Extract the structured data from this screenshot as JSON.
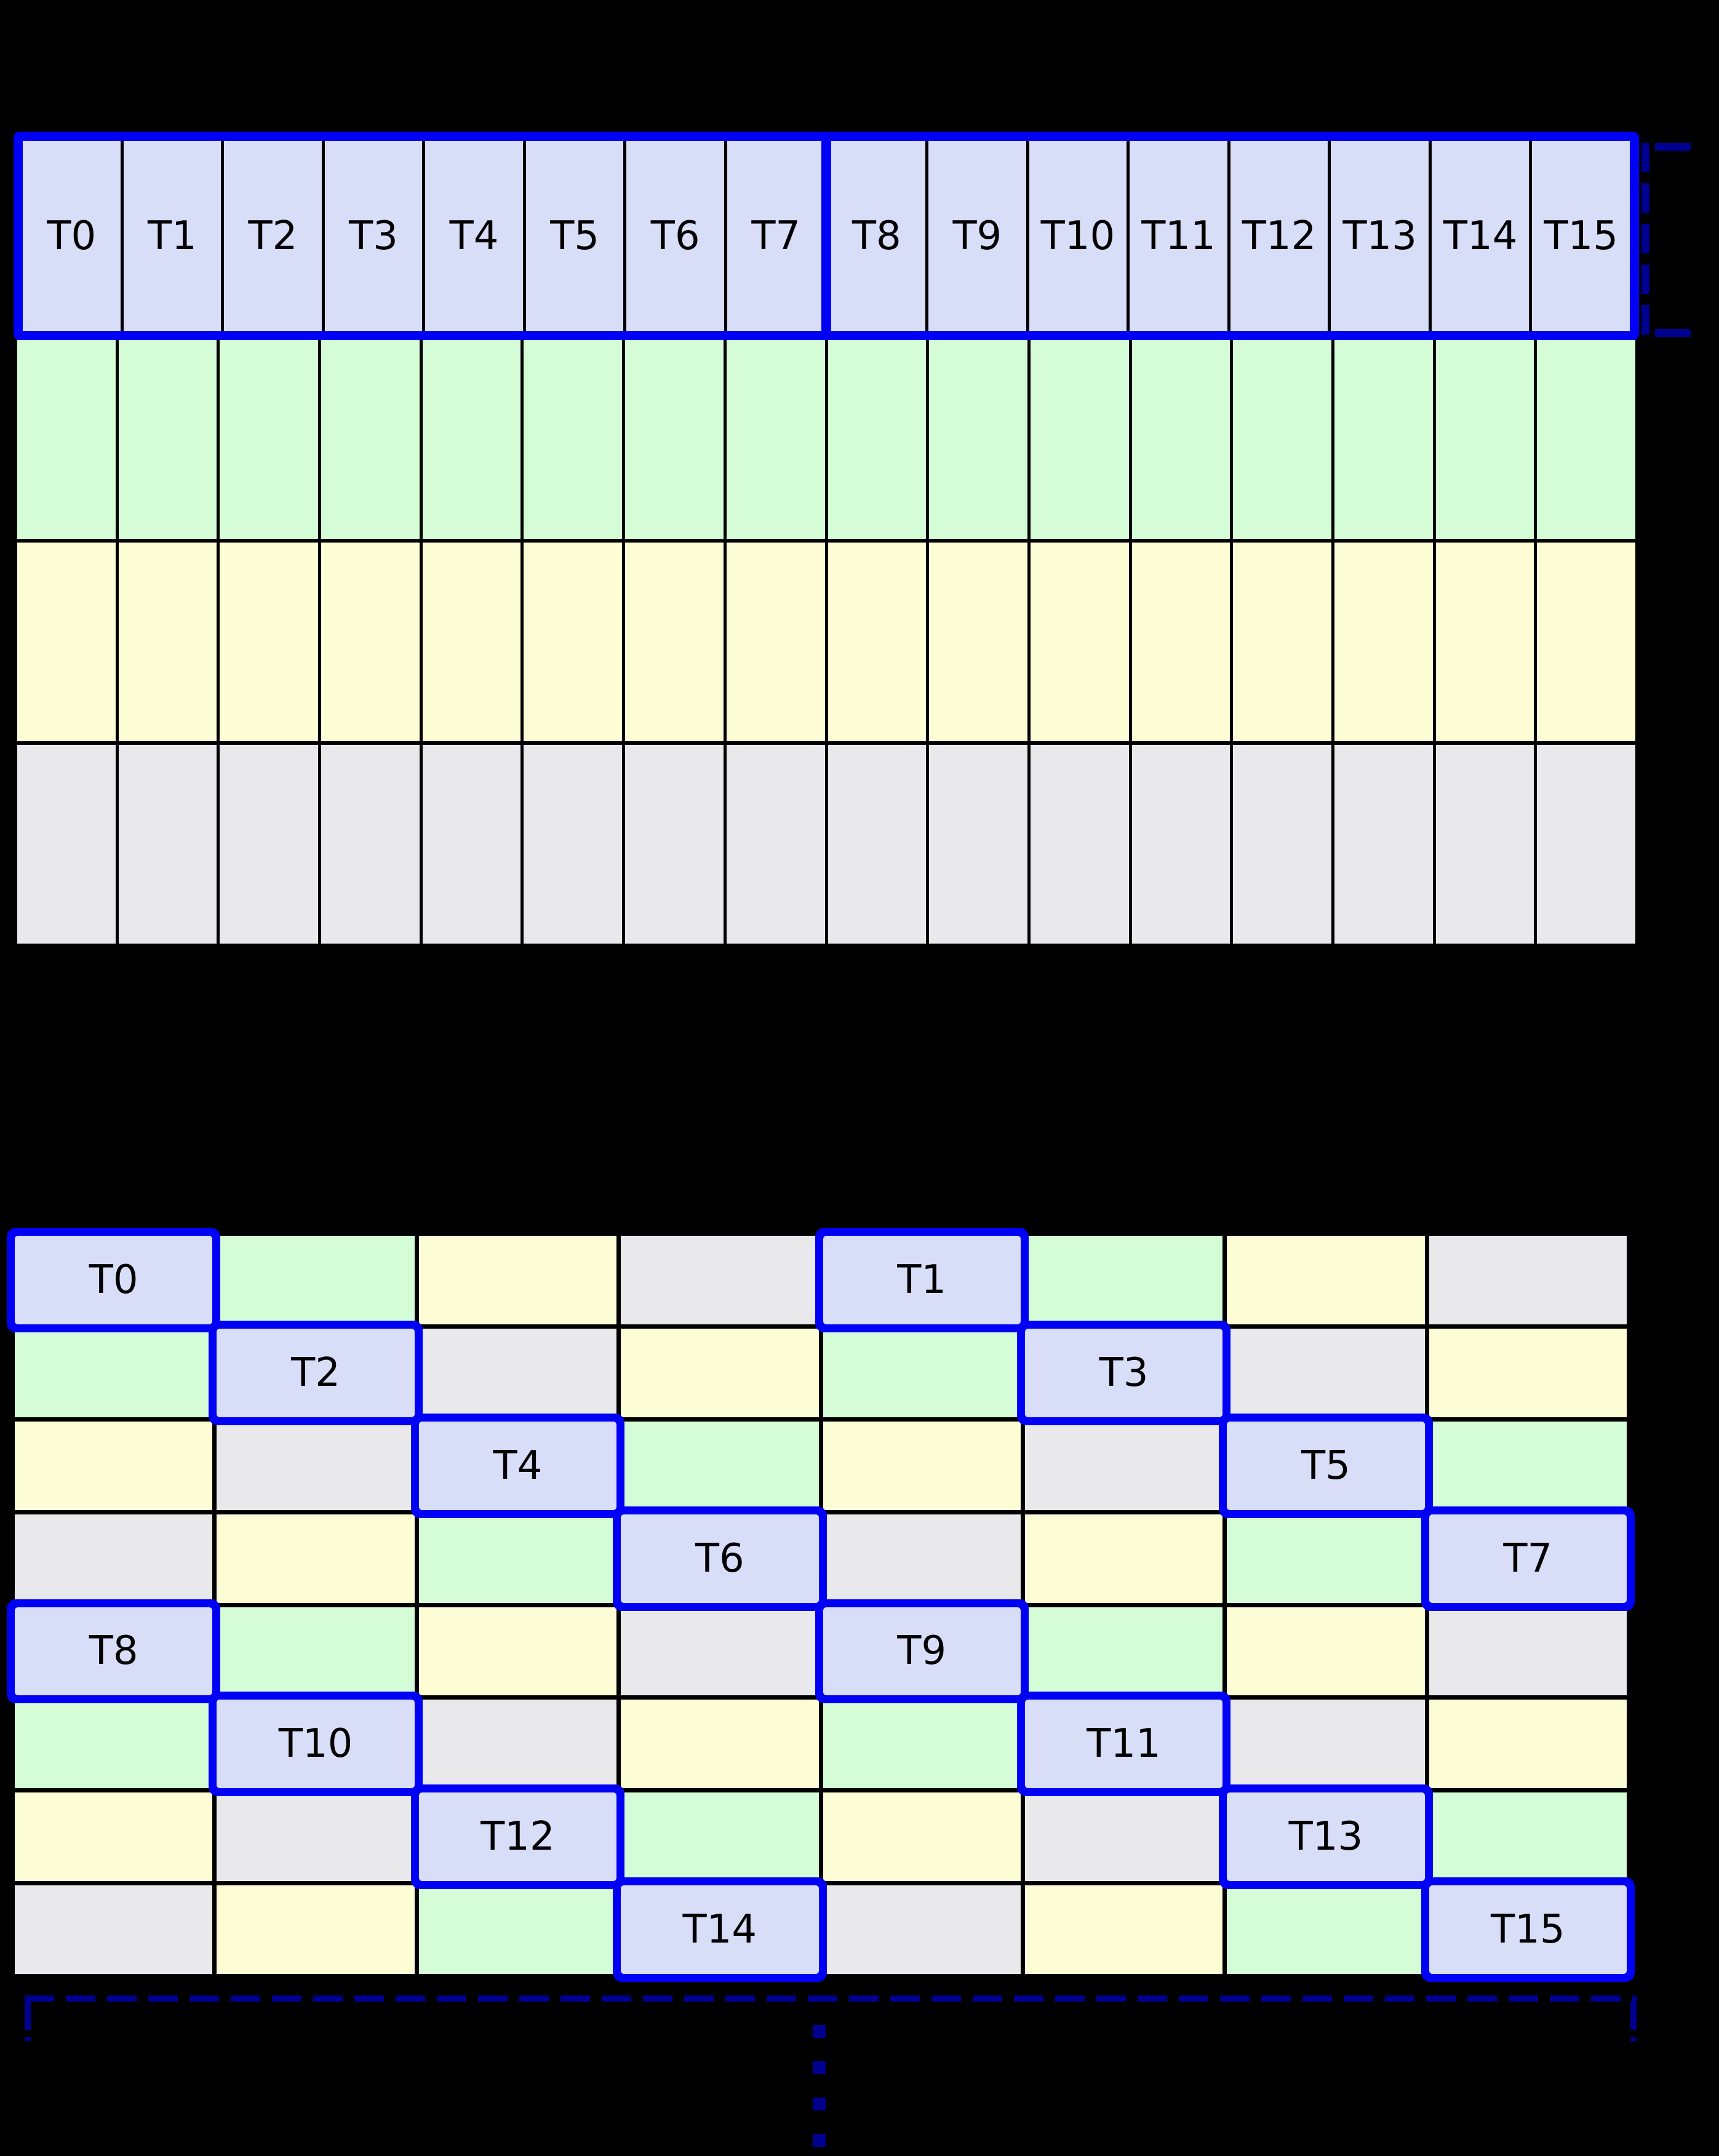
{
  "colors": {
    "background": "#000000",
    "grid_line": "#000000",
    "highlight_border": "#0000F5",
    "bracket": "#000090",
    "label_text": "#000000",
    "cells": {
      "lavender": "#D8DDF8",
      "green": "#D4FDD7",
      "yellow": "#FCFCD5",
      "gray": "#E9E8EA"
    }
  },
  "top_grid": {
    "columns": 16,
    "threads": [
      "T0",
      "T1",
      "T2",
      "T3",
      "T4",
      "T5",
      "T6",
      "T7",
      "T8",
      "T9",
      "T10",
      "T11",
      "T12",
      "T13",
      "T14",
      "T15"
    ],
    "thread_row_color": "lavender",
    "lower_row_colors": [
      "green",
      "yellow",
      "gray"
    ],
    "warp_groups": [
      {
        "start": 0,
        "end": 7
      },
      {
        "start": 8,
        "end": 15
      }
    ]
  },
  "bottom_grid": {
    "columns": 8,
    "rows": [
      [
        "L:T0",
        "G",
        "Y",
        "X",
        "L:T1",
        "G",
        "Y",
        "X"
      ],
      [
        "G",
        "L:T2",
        "X",
        "Y",
        "G",
        "L:T3",
        "X",
        "Y"
      ],
      [
        "Y",
        "X",
        "L:T4",
        "G",
        "Y",
        "X",
        "L:T5",
        "G"
      ],
      [
        "X",
        "Y",
        "G",
        "L:T6",
        "X",
        "Y",
        "G",
        "L:T7"
      ],
      [
        "L:T8",
        "G",
        "Y",
        "X",
        "L:T9",
        "G",
        "Y",
        "X"
      ],
      [
        "G",
        "L:T10",
        "X",
        "Y",
        "G",
        "L:T11",
        "X",
        "Y"
      ],
      [
        "Y",
        "X",
        "L:T12",
        "G",
        "Y",
        "X",
        "L:T13",
        "G"
      ],
      [
        "X",
        "Y",
        "G",
        "L:T14",
        "X",
        "Y",
        "G",
        "L:T15"
      ]
    ],
    "color_codes": {
      "L": "lavender",
      "G": "green",
      "Y": "yellow",
      "X": "gray"
    }
  },
  "ellipsis": {
    "dot_count": 4
  }
}
